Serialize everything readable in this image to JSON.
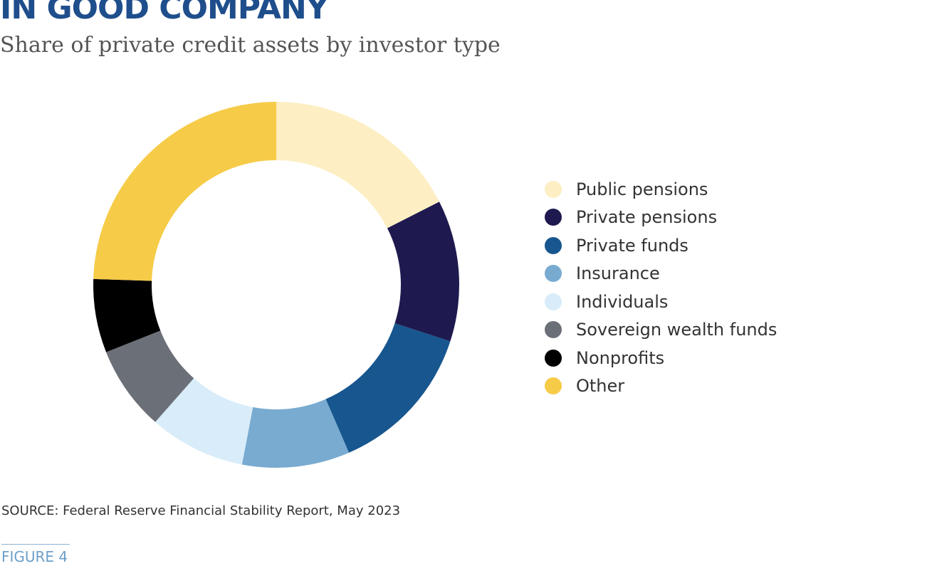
{
  "header": {
    "title": "IN GOOD COMPANY",
    "subtitle": "Share of private credit assets by investor type"
  },
  "chart_data": {
    "type": "pie",
    "style": "donut",
    "title": "IN GOOD COMPANY",
    "subtitle": "Share of private credit assets by investor type",
    "unit": "percent",
    "legend_position": "right",
    "categories": [
      "Public pensions",
      "Private pensions",
      "Private funds",
      "Insurance",
      "Individuals",
      "Sovereign wealth funds",
      "Nonprofits",
      "Other"
    ],
    "values": [
      17.5,
      12.5,
      13.5,
      9.5,
      8.5,
      7.5,
      6.5,
      24.5
    ],
    "colors": [
      "#fdefc3",
      "#1e1a4f",
      "#17568e",
      "#79abd0",
      "#d8ecf9",
      "#6b7078",
      "#000000",
      "#f6cb47"
    ]
  },
  "footer": {
    "source": "SOURCE: Federal Reserve Financial Stability Report, May 2023",
    "figure_label": "FIGURE 4"
  }
}
